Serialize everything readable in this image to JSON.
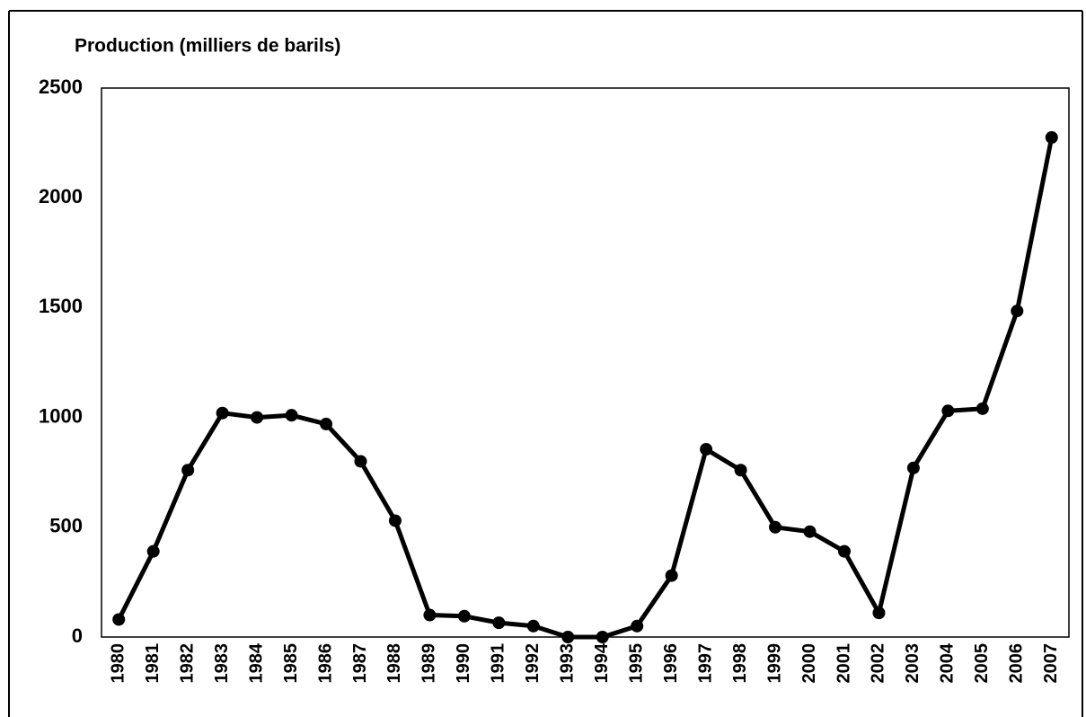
{
  "chart_data": {
    "type": "line",
    "title": "Production (milliers de barils)",
    "categories": [
      "1980",
      "1981",
      "1982",
      "1983",
      "1984",
      "1985",
      "1986",
      "1987",
      "1988",
      "1989",
      "1990",
      "1991",
      "1992",
      "1993",
      "1994",
      "1995",
      "1996",
      "1997",
      "1998",
      "1999",
      "2000",
      "2001",
      "2002",
      "2003",
      "2004",
      "2005",
      "2006",
      "2007"
    ],
    "series": [
      {
        "name": "Production",
        "color": "#000000",
        "values": [
          80,
          390,
          760,
          1020,
          1000,
          1010,
          970,
          800,
          530,
          100,
          95,
          65,
          50,
          0,
          0,
          50,
          280,
          855,
          760,
          500,
          480,
          390,
          110,
          770,
          1030,
          1040,
          1485,
          2275
        ]
      }
    ],
    "ylim": [
      0,
      2500
    ],
    "yticks": [
      0,
      500,
      1000,
      1500,
      2000,
      2500
    ],
    "grid": false,
    "legend": false
  }
}
